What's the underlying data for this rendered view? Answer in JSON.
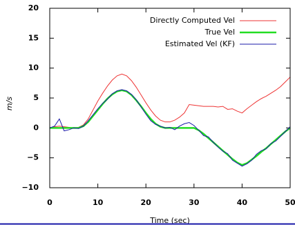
{
  "chart_data": {
    "type": "line",
    "x_label": "Time (sec)",
    "y_label": "m/s",
    "x": [
      0,
      1,
      2,
      3,
      4,
      5,
      6,
      7,
      8,
      9,
      10,
      11,
      12,
      13,
      14,
      15,
      16,
      17,
      18,
      19,
      20,
      21,
      22,
      23,
      24,
      25,
      26,
      27,
      28,
      29,
      30,
      31,
      32,
      33,
      34,
      35,
      36,
      37,
      38,
      39,
      40,
      41,
      42,
      43,
      44,
      45,
      46,
      47,
      48,
      49,
      50
    ],
    "series": [
      {
        "name": "Directly Computed Vel",
        "color": "#ee3333",
        "values": [
          0,
          0.2,
          0.3,
          0.2,
          0.1,
          0,
          0.1,
          0.5,
          1.5,
          3.0,
          4.5,
          5.8,
          7.0,
          8.0,
          8.7,
          9.0,
          8.7,
          7.9,
          6.8,
          5.5,
          4.2,
          3.0,
          2.0,
          1.3,
          1.0,
          1.0,
          1.3,
          1.8,
          2.5,
          3.9,
          3.8,
          3.7,
          3.6,
          3.6,
          3.6,
          3.5,
          3.6,
          3.1,
          3.2,
          2.8,
          2.5,
          3.2,
          3.8,
          4.4,
          4.9,
          5.3,
          5.8,
          6.3,
          6.9,
          7.7,
          8.5
        ]
      },
      {
        "name": "True Vel",
        "color": "#22dd22",
        "values": [
          0,
          0,
          0,
          0,
          0,
          0,
          0,
          0.3,
          1.0,
          2.0,
          3.0,
          4.0,
          4.9,
          5.6,
          6.1,
          6.3,
          6.1,
          5.5,
          4.6,
          3.6,
          2.5,
          1.5,
          0.7,
          0.2,
          0,
          0,
          0,
          0,
          0,
          0,
          0,
          -0.4,
          -1.0,
          -1.7,
          -2.4,
          -3.1,
          -3.8,
          -4.5,
          -5.2,
          -5.8,
          -6.2,
          -5.9,
          -5.3,
          -4.7,
          -4.0,
          -3.4,
          -2.7,
          -2.0,
          -1.3,
          -0.6,
          0
        ]
      },
      {
        "name": "Estimated Vel (KF)",
        "color": "#1a1aa8",
        "values": [
          0,
          0.3,
          1.5,
          -0.5,
          -0.3,
          0,
          -0.1,
          0.3,
          1.2,
          2.2,
          3.2,
          4.1,
          4.8,
          5.7,
          6.2,
          6.4,
          6.2,
          5.6,
          4.7,
          3.5,
          2.3,
          1.2,
          0.6,
          0.3,
          0,
          0.1,
          -0.3,
          0.3,
          0.7,
          0.9,
          0.4,
          -0.4,
          -1.3,
          -1.5,
          -2.4,
          -3.2,
          -3.9,
          -4.3,
          -5.4,
          -5.9,
          -6.4,
          -6.0,
          -5.4,
          -4.4,
          -3.8,
          -3.5,
          -2.6,
          -2.2,
          -1.4,
          -0.6,
          0.2
        ]
      }
    ],
    "xlim": [
      0,
      50
    ],
    "xticks": [
      0,
      10,
      20,
      30,
      40,
      50
    ],
    "ylim": [
      -10,
      20
    ],
    "yticks": [
      {
        "value": -10,
        "label": "−10"
      },
      {
        "value": -5,
        "label": "−5"
      },
      0,
      5,
      10,
      15,
      20
    ],
    "legend": "upper right",
    "grid": false
  }
}
